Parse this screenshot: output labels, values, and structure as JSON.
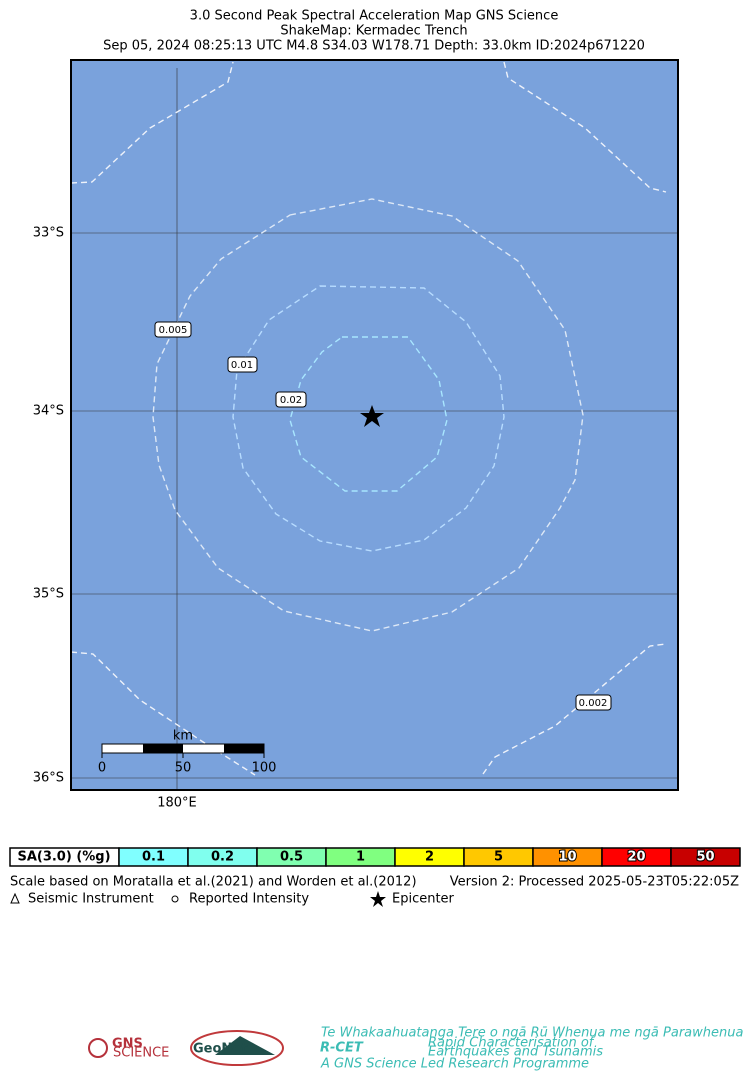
{
  "header": {
    "title": "3.0 Second Peak Spectral Acceleration Map GNS Science",
    "subtitle": "ShakeMap: Kermadec Trench",
    "event": "Sep 05, 2024 08:25:13 UTC M4.8 S34.03 W178.71 Depth: 33.0km ID:2024p671220"
  },
  "map": {
    "background": "#7aa2dc",
    "lat_labels": [
      "33°S",
      "34°S",
      "35°S",
      "36°S"
    ],
    "lon_labels": [
      "180°E"
    ],
    "contour_labels": [
      "0.005",
      "0.01",
      "0.02",
      "0.002"
    ],
    "scale_bar": {
      "unit": "km",
      "labels": [
        "0",
        "50",
        "100"
      ]
    }
  },
  "legend": {
    "header": "SA(3.0) (%g)",
    "bins": [
      {
        "label": "0.1",
        "color": "#80ffff"
      },
      {
        "label": "0.2",
        "color": "#80ffee"
      },
      {
        "label": "0.5",
        "color": "#80ffb0"
      },
      {
        "label": "1",
        "color": "#80ff80"
      },
      {
        "label": "2",
        "color": "#ffff00"
      },
      {
        "label": "5",
        "color": "#ffc800"
      },
      {
        "label": "10",
        "color": "#ff9100"
      },
      {
        "label": "20",
        "color": "#ff0000"
      },
      {
        "label": "50",
        "color": "#c80000"
      }
    ]
  },
  "notes": {
    "scale": "Scale based on Moratalla et al.(2021) and Worden et al.(2012)",
    "version": "Version 2: Processed 2025-05-23T05:22:05Z",
    "symbols": [
      "Seismic Instrument",
      "Reported Intensity",
      "Epicenter"
    ]
  },
  "logos": {
    "gns": "GNS",
    "gns_sub": "SCIENCE",
    "geonet": "GeoNet",
    "rcet": "R-CET",
    "rcet_top": "Te Whakaahuatanga Tere o ngā Rū Whenua me ngā Parawhenua",
    "rcet_side1": "Rapid Characterisation of",
    "rcet_side2": "Earthquakes and Tsunamis",
    "rcet_bottom": "A GNS Science Led Research Programme"
  }
}
